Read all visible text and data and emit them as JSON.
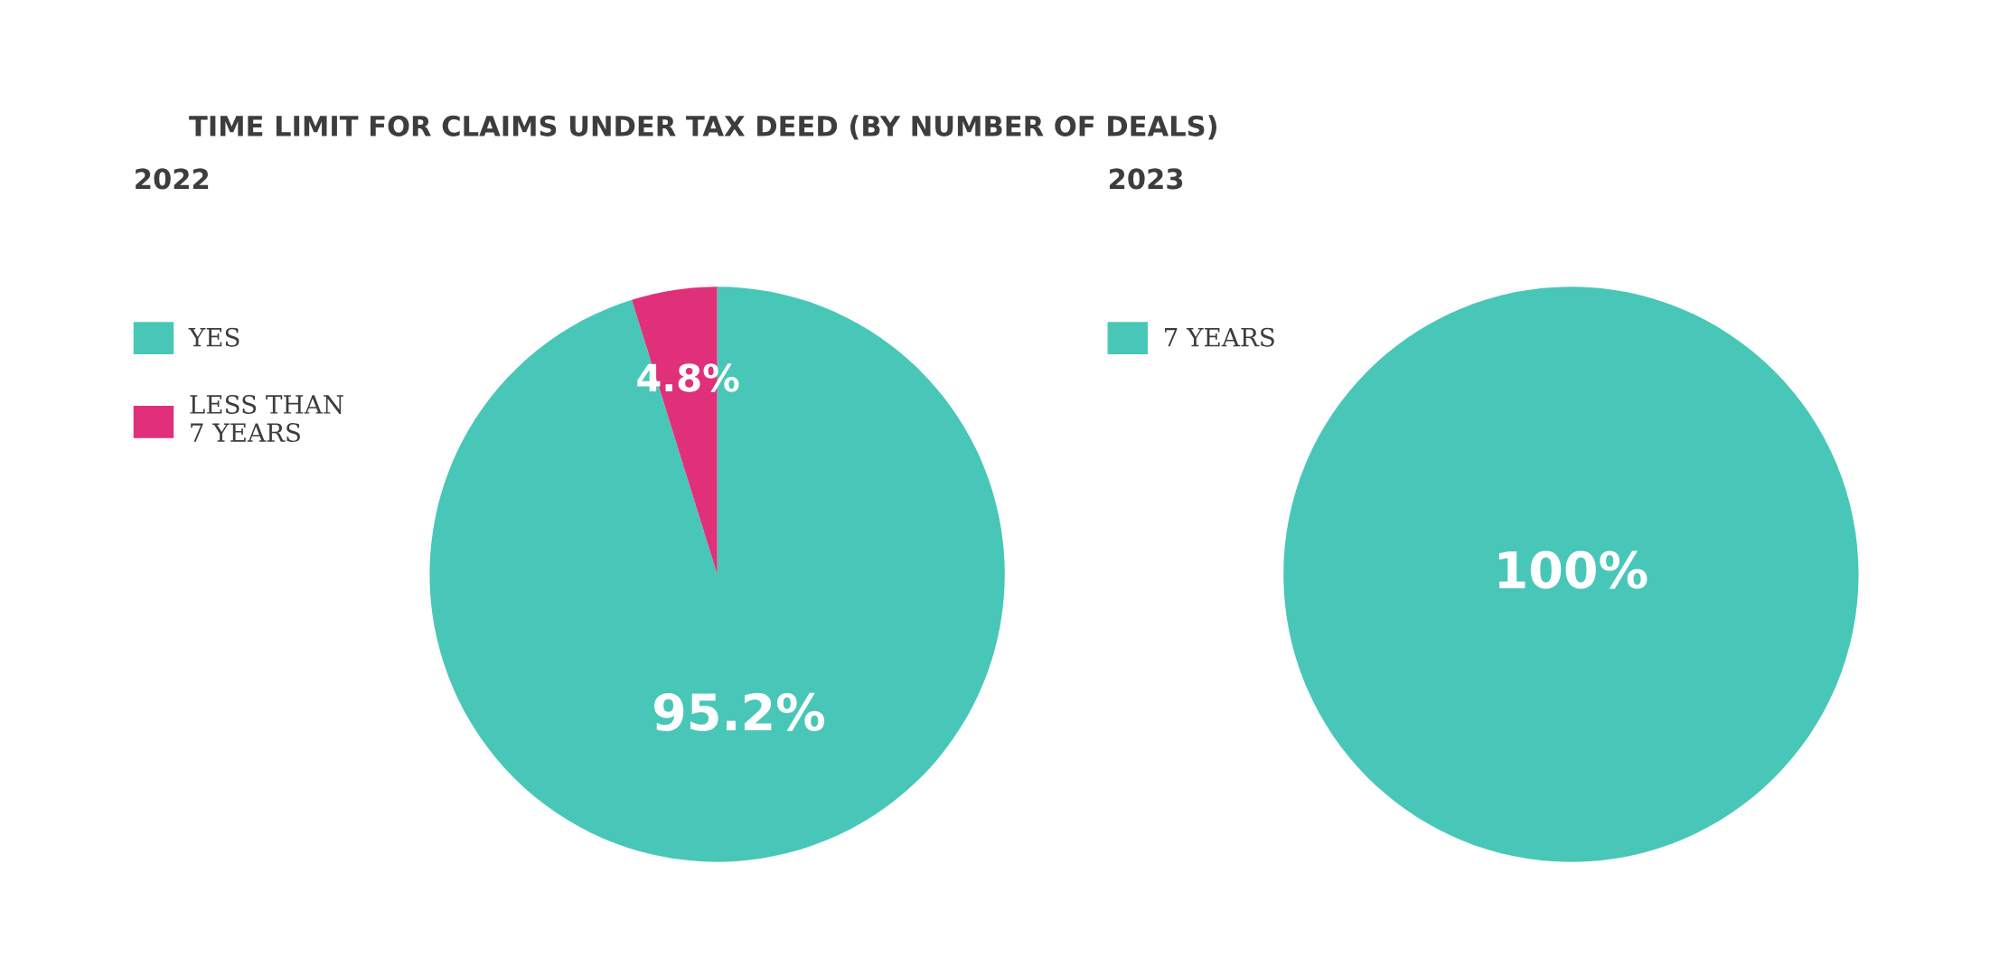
{
  "chart_data": [
    {
      "type": "pie",
      "title": "TIME LIMIT FOR CLAIMS UNDER TAX DEED (BY NUMBER OF DEALS)",
      "subtitle": "2022",
      "categories": [
        "YES",
        "LESS THAN 7 YEARS"
      ],
      "values": [
        95.2,
        4.8
      ],
      "colors": [
        "#48c7b9",
        "#e0307a"
      ],
      "value_labels": [
        "95.2%",
        "4.8%"
      ],
      "legend": "left"
    },
    {
      "type": "pie",
      "subtitle": "2023",
      "categories": [
        "7 YEARS"
      ],
      "values": [
        100
      ],
      "colors": [
        "#48c7b9"
      ],
      "value_labels": [
        "100%"
      ],
      "legend": "left"
    }
  ]
}
